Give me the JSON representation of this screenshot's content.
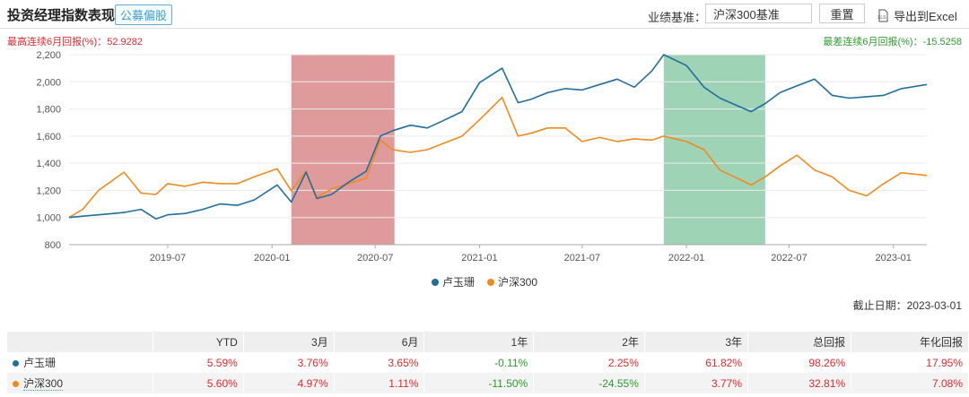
{
  "header": {
    "title": "投资经理指数表现",
    "tag": "公募偏股",
    "benchmark_label": "业绩基准：",
    "benchmark_value": "沪深300基准",
    "reset_label": "重置",
    "export_label": "导出到Excel",
    "export_icon": "xls-file-icon"
  },
  "stats": {
    "max_6m": "最高连续6月回报(%)：52.9282",
    "min_6m": "最差连续6月回报(%)：-15.5258"
  },
  "as_of": "截止日期：2023-03-01",
  "colors": {
    "manager": "#1f6f9c",
    "benchmark": "#f08a1c",
    "best_period": "#df9b9b",
    "worst_period": "#9fd3b6",
    "positive": "#e0282e",
    "negative": "#2d9a2d"
  },
  "chart_data": {
    "type": "line",
    "grid": true,
    "legend": "bottom",
    "ylim": [
      800,
      2200
    ],
    "yticks": [
      "800",
      "1,000",
      "1,200",
      "1,400",
      "1,600",
      "1,800",
      "2,000",
      "2,200"
    ],
    "xticks": [
      "2019-07",
      "2020-01",
      "2020-07",
      "2021-01",
      "2021-07",
      "2022-01",
      "2022-07",
      "2023-01"
    ],
    "xlim": [
      "2019-01-08",
      "2023-03-01"
    ],
    "shaded": [
      {
        "type": "best",
        "from": "2020-02-04",
        "to": "2020-08-04"
      },
      {
        "type": "worst",
        "from": "2021-11-22",
        "to": "2022-05-20"
      }
    ],
    "x": [
      "2019-01-08",
      "2019-02-01",
      "2019-03-01",
      "2019-04-15",
      "2019-05-15",
      "2019-06-10",
      "2019-07-01",
      "2019-08-01",
      "2019-09-01",
      "2019-10-01",
      "2019-11-01",
      "2019-12-01",
      "2020-01-10",
      "2020-02-04",
      "2020-03-01",
      "2020-03-20",
      "2020-04-15",
      "2020-05-15",
      "2020-06-15",
      "2020-07-10",
      "2020-08-01",
      "2020-09-01",
      "2020-10-01",
      "2020-11-01",
      "2020-12-01",
      "2021-01-01",
      "2021-02-10",
      "2021-03-10",
      "2021-04-01",
      "2021-05-01",
      "2021-06-01",
      "2021-07-01",
      "2021-08-01",
      "2021-09-01",
      "2021-10-01",
      "2021-11-01",
      "2021-11-22",
      "2022-01-01",
      "2022-02-01",
      "2022-03-01",
      "2022-04-25",
      "2022-05-20",
      "2022-06-15",
      "2022-07-15",
      "2022-08-15",
      "2022-09-15",
      "2022-10-15",
      "2022-11-15",
      "2022-12-15",
      "2023-01-15",
      "2023-03-01"
    ],
    "series": [
      {
        "name": "卢玉珊",
        "values": [
          1000,
          1010,
          1020,
          1037,
          1060,
          990,
          1020,
          1030,
          1060,
          1100,
          1090,
          1130,
          1240,
          1114,
          1334,
          1140,
          1170,
          1260,
          1340,
          1600,
          1640,
          1680,
          1660,
          1720,
          1780,
          1994,
          2100,
          1846,
          1870,
          1920,
          1950,
          1940,
          1980,
          2020,
          1960,
          2080,
          2200,
          2120,
          1960,
          1880,
          1780,
          1840,
          1920,
          1970,
          2020,
          1900,
          1880,
          1890,
          1900,
          1950,
          1980
        ]
      },
      {
        "name": "沪深300",
        "values": [
          1000,
          1060,
          1200,
          1334,
          1180,
          1170,
          1250,
          1230,
          1260,
          1250,
          1250,
          1300,
          1360,
          1197,
          1340,
          1150,
          1210,
          1250,
          1290,
          1570,
          1500,
          1480,
          1500,
          1550,
          1600,
          1720,
          1885,
          1600,
          1620,
          1660,
          1660,
          1560,
          1590,
          1560,
          1580,
          1570,
          1600,
          1560,
          1500,
          1350,
          1240,
          1300,
          1380,
          1459,
          1350,
          1300,
          1200,
          1160,
          1250,
          1330,
          1310
        ]
      }
    ]
  },
  "table": {
    "headers": [
      "",
      "YTD",
      "3月",
      "6月",
      "1年",
      "2年",
      "3年",
      "总回报",
      "年化回报"
    ],
    "rows": [
      {
        "name": "卢玉珊",
        "values": [
          "5.59%",
          "3.76%",
          "3.65%",
          "-0.11%",
          "2.25%",
          "61.82%",
          "98.26%",
          "17.95%"
        ]
      },
      {
        "name": "沪深300",
        "values": [
          "5.60%",
          "4.97%",
          "1.11%",
          "-11.50%",
          "-24.55%",
          "3.77%",
          "32.81%",
          "7.08%"
        ]
      }
    ]
  }
}
